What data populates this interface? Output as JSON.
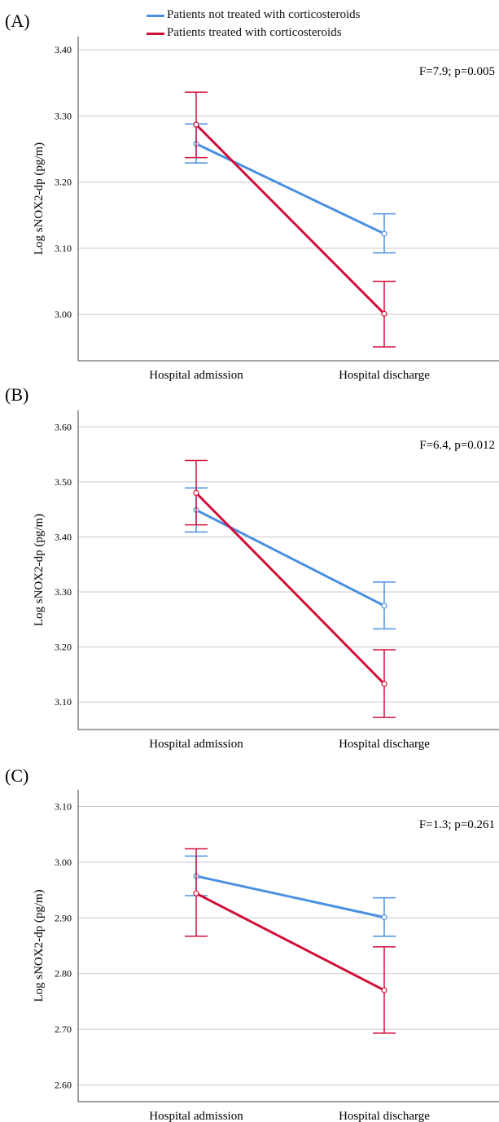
{
  "legend": {
    "items": [
      {
        "label": "Patients not treated with corticosteroids",
        "color": "#4A90E2"
      },
      {
        "label": "Patients treated with corticosteroids",
        "color": "#D0103A"
      }
    ]
  },
  "chart_data": [
    {
      "type": "line",
      "panel": "(A)",
      "ylabel": "Log sNOX2-dp (pg/m)",
      "categories": [
        "Hospital admission",
        "Hospital discharge"
      ],
      "yticks": [
        "3.00",
        "3.10",
        "3.20",
        "3.30",
        "3.40"
      ],
      "ylim": [
        2.93,
        3.42
      ],
      "grid": true,
      "annotation": "F=7.9; p=0.005",
      "series": [
        {
          "name": "Patients not treated with corticosteroids",
          "color": "#4A90E2",
          "values": [
            3.258,
            3.122
          ],
          "err_low": [
            3.229,
            3.093
          ],
          "err_high": [
            3.288,
            3.152
          ]
        },
        {
          "name": "Patients treated with corticosteroids",
          "color": "#D0103A",
          "values": [
            3.287,
            3.001
          ],
          "err_low": [
            3.237,
            2.951
          ],
          "err_high": [
            3.336,
            3.05
          ]
        }
      ]
    },
    {
      "type": "line",
      "panel": "(B)",
      "ylabel": "Log sNOX2-dp (pg/m)",
      "categories": [
        "Hospital admission",
        "Hospital discharge"
      ],
      "yticks": [
        "3.10",
        "3.20",
        "3.30",
        "3.40",
        "3.50",
        "3.60"
      ],
      "ylim": [
        3.05,
        3.63
      ],
      "grid": true,
      "annotation": "F=6.4, p=0.012",
      "series": [
        {
          "name": "Patients not treated with corticosteroids",
          "color": "#4A90E2",
          "values": [
            3.449,
            3.275
          ],
          "err_low": [
            3.409,
            3.233
          ],
          "err_high": [
            3.489,
            3.318
          ]
        },
        {
          "name": "Patients treated with corticosteroids",
          "color": "#D0103A",
          "values": [
            3.48,
            3.133
          ],
          "err_low": [
            3.422,
            3.072
          ],
          "err_high": [
            3.539,
            3.195
          ]
        }
      ]
    },
    {
      "type": "line",
      "panel": "(C)",
      "ylabel": "Log sNOX2-dp (pg/m)",
      "categories": [
        "Hospital admission",
        "Hospital discharge"
      ],
      "yticks": [
        "2.60",
        "2.70",
        "2.80",
        "2.90",
        "3.00",
        "3.10"
      ],
      "ylim": [
        2.57,
        3.13
      ],
      "grid": true,
      "annotation": "F=1.3; p=0.261",
      "series": [
        {
          "name": "Patients not treated with corticosteroids",
          "color": "#4A90E2",
          "values": [
            2.975,
            2.901
          ],
          "err_low": [
            2.94,
            2.867
          ],
          "err_high": [
            3.011,
            2.936
          ]
        },
        {
          "name": "Patients treated with corticosteroids",
          "color": "#D0103A",
          "values": [
            2.944,
            2.77
          ],
          "err_low": [
            2.867,
            2.693
          ],
          "err_high": [
            3.024,
            2.848
          ]
        }
      ]
    }
  ]
}
